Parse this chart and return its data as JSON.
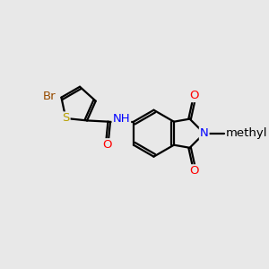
{
  "bg_color": "#e8e8e8",
  "bond_color": "#000000",
  "bond_width": 1.6,
  "dbo": 0.12,
  "atom_colors": {
    "Br": "#964B00",
    "S": "#b8a000",
    "O": "#ff0000",
    "N": "#0000ff",
    "C": "#000000"
  },
  "font_size": 9.5,
  "fig_width": 3.0,
  "fig_height": 3.0,
  "dpi": 100,
  "xlim": [
    0,
    10
  ],
  "ylim": [
    0,
    10
  ]
}
